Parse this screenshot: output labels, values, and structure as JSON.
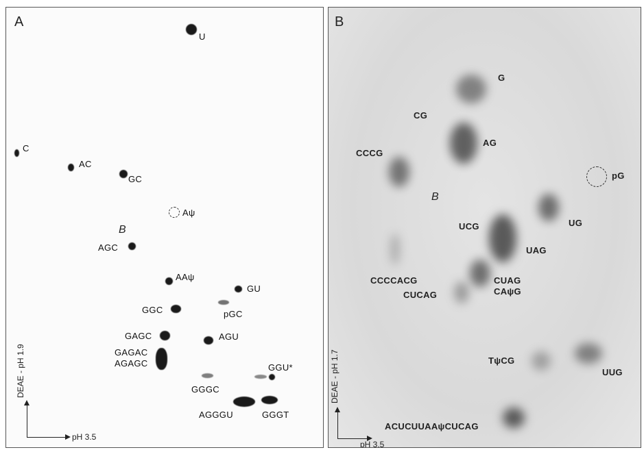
{
  "panel_a": {
    "label": "A",
    "x_axis": "pH 3.5",
    "y_axis": "DEAE - pH 1.9",
    "marker_b": "B",
    "spots": {
      "U": "U",
      "C": "C",
      "AC": "AC",
      "GC": "GC",
      "Apsi": "Aψ",
      "AGC": "AGC",
      "AApsi": "AAψ",
      "GU": "GU",
      "GGC": "GGC",
      "pGC": "pGC",
      "GAGC": "GAGC",
      "AGU": "AGU",
      "GAGAC": "GAGAC",
      "AGAGC": "AGAGC",
      "GGU": "GGU*",
      "GGGC": "GGGC",
      "AGGGU": "AGGGU",
      "GGGT": "GGGT"
    }
  },
  "panel_b": {
    "label": "B",
    "x_axis": "pH 3.5",
    "y_axis": "DEAE - pH 1.7",
    "marker_b": "B",
    "spots": {
      "G": "G",
      "CG": "CG",
      "AG": "AG",
      "CCCG": "CCCG",
      "pG": "pG",
      "UG": "UG",
      "UCG": "UCG",
      "UAG": "UAG",
      "CCCCACG": "CCCCACG",
      "CUCAG": "CUCAG",
      "CUAG": "CUAG",
      "CApsiG": "CAψG",
      "TpsiCG": "TψCG",
      "UUG": "UUG",
      "long": "ACUCUUAAψCUCAG"
    }
  }
}
